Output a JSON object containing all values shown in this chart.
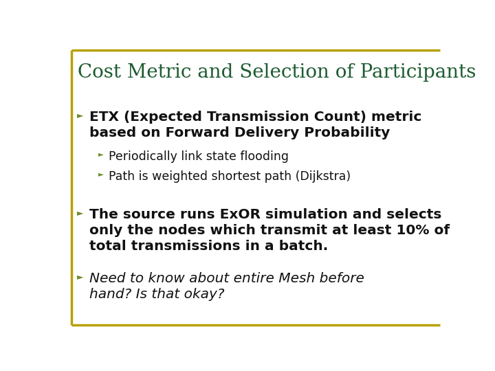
{
  "title": "Cost Metric and Selection of Participants",
  "title_color": "#1E5C32",
  "title_fontsize": 20,
  "background_color": "#FFFFFF",
  "border_color": "#B8A000",
  "text_color": "#111111",
  "bullet_color": "#6B8C2A",
  "bullets": [
    {
      "level": 1,
      "text": "ETX (Expected Transmission Count) metric\nbased on Forward Delivery Probability",
      "bold": true,
      "italic": false,
      "fontsize": 14.5
    },
    {
      "level": 2,
      "text": "Periodically link state flooding",
      "bold": false,
      "italic": false,
      "fontsize": 12.5
    },
    {
      "level": 2,
      "text": "Path is weighted shortest path (Dijkstra)",
      "bold": false,
      "italic": false,
      "fontsize": 12.5
    },
    {
      "level": 1,
      "text": "The source runs ExOR simulation and selects\nonly the nodes which transmit at least 10% of\ntotal transmissions in a batch.",
      "bold": true,
      "italic": false,
      "fontsize": 14.5
    },
    {
      "level": 1,
      "text": "Need to know about entire Mesh before\nhand? Is that okay?",
      "bold": false,
      "italic": true,
      "fontsize": 14.5
    }
  ]
}
